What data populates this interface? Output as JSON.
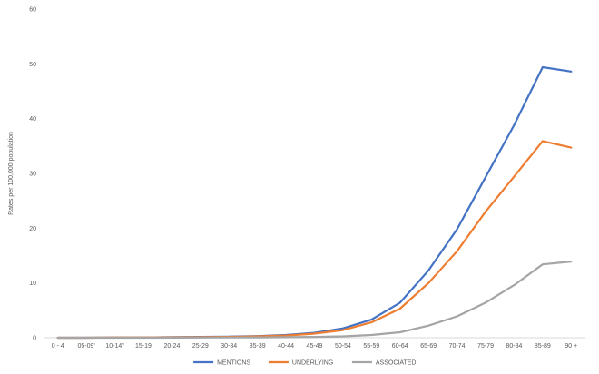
{
  "chart_data": {
    "type": "line",
    "title": "",
    "xlabel": "",
    "ylabel": "Rates per 100,000 population",
    "ylim": [
      0,
      60
    ],
    "yticks": [
      0,
      10,
      20,
      30,
      40,
      50,
      60
    ],
    "grid": false,
    "legend_position": "bottom",
    "categories": [
      "0 - 4",
      "05-09'",
      "10-14\"",
      "15-19",
      "20-24",
      "25-29",
      "30-34",
      "35-39",
      "40-44",
      "45-49",
      "50-54",
      "55-59",
      "60-64",
      "65-69",
      "70-74",
      "75-79",
      "80-84",
      "85-89",
      "90 +"
    ],
    "series": [
      {
        "name": "MENTIONS",
        "color": "#4472C4",
        "values": [
          0,
          0,
          0.05,
          0.05,
          0.1,
          0.15,
          0.2,
          0.3,
          0.5,
          0.9,
          1.7,
          3.3,
          6.4,
          12.3,
          19.8,
          29.3,
          38.8,
          49.4,
          48.6
        ]
      },
      {
        "name": "UNDERLYING",
        "color": "#ED7D31",
        "values": [
          0,
          0,
          0.05,
          0.05,
          0.08,
          0.12,
          0.15,
          0.25,
          0.4,
          0.75,
          1.4,
          2.8,
          5.3,
          10.0,
          15.8,
          23.0,
          29.4,
          35.9,
          34.7
        ]
      },
      {
        "name": "ASSOCIATED",
        "color": "#A5A5A5",
        "values": [
          0,
          0,
          0,
          0,
          0.02,
          0.03,
          0.05,
          0.07,
          0.1,
          0.15,
          0.25,
          0.5,
          1.0,
          2.2,
          3.9,
          6.4,
          9.6,
          13.4,
          13.9
        ]
      }
    ]
  }
}
